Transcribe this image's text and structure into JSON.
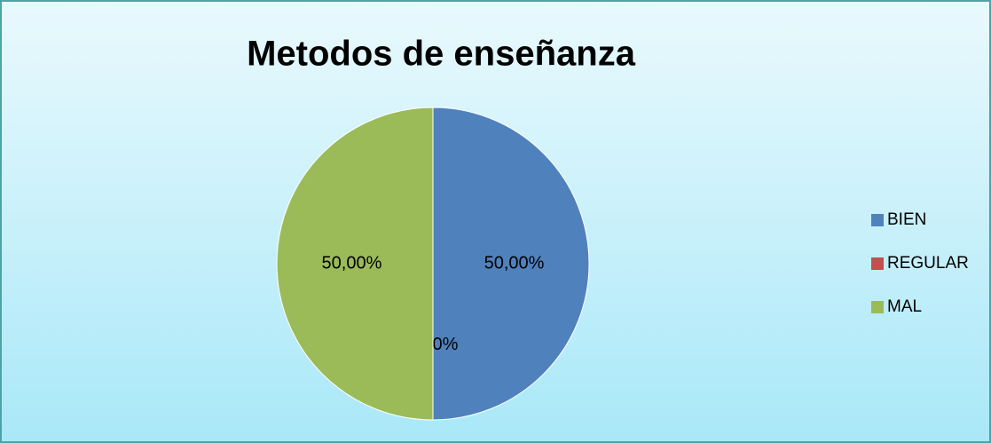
{
  "chart_data": {
    "type": "pie",
    "title": "Metodos de enseñanza",
    "categories": [
      "BIEN",
      "REGULAR",
      "MAL"
    ],
    "values": [
      50,
      0,
      50
    ],
    "value_labels": [
      "50,00%",
      "0,00%",
      "50,00%"
    ],
    "colors": [
      "#4f81bd",
      "#c0504d",
      "#9bbb59"
    ],
    "legend": "right"
  }
}
